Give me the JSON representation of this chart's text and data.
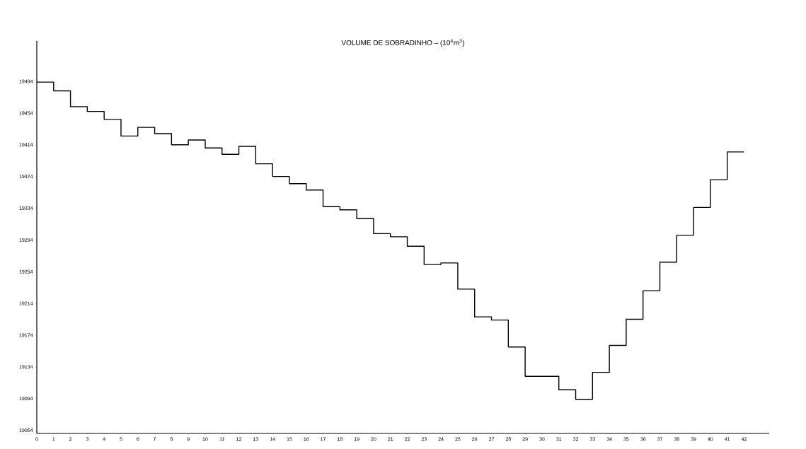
{
  "chart_data": {
    "type": "step",
    "title": "VOLUME DE SOBRADINHO – (10$^{4}$m$^{3}$)",
    "x": [
      0,
      1,
      2,
      3,
      4,
      5,
      6,
      7,
      8,
      9,
      10,
      11,
      12,
      13,
      14,
      15,
      16,
      17,
      18,
      19,
      20,
      21,
      22,
      23,
      24,
      25,
      26,
      27,
      28,
      29,
      30,
      31,
      32,
      33,
      34,
      35,
      36,
      37,
      38,
      39,
      40,
      41,
      42
    ],
    "values": [
      19493,
      19482,
      19462,
      19456,
      19446,
      19425,
      19436,
      19428,
      19414,
      19420,
      19410,
      19402,
      19412,
      19390,
      19374,
      19365,
      19357,
      19336,
      19332,
      19321,
      19302,
      19298,
      19286,
      19263,
      19265,
      19232,
      19197,
      19193,
      19159,
      19122,
      19122,
      19105,
      19093,
      19127,
      19161,
      19194,
      19230,
      19266,
      19300,
      19335,
      19370,
      19405,
      19405
    ],
    "color": "#000000",
    "xlim": [
      0,
      43.5
    ],
    "ylim": [
      19050,
      19545
    ],
    "xticks": [
      0,
      1,
      2,
      3,
      4,
      5,
      6,
      7,
      8,
      9,
      10,
      11,
      12,
      13,
      14,
      15,
      16,
      17,
      18,
      19,
      20,
      21,
      22,
      23,
      24,
      25,
      26,
      27,
      28,
      29,
      30,
      31,
      32,
      33,
      34,
      35,
      36,
      37,
      38,
      39,
      40,
      41,
      42
    ],
    "yticks": [
      19054,
      19094,
      19134,
      19174,
      19214,
      19254,
      19294,
      19334,
      19374,
      19414,
      19454,
      19494
    ],
    "grid": false,
    "marker": "none",
    "line_style": "solid"
  }
}
